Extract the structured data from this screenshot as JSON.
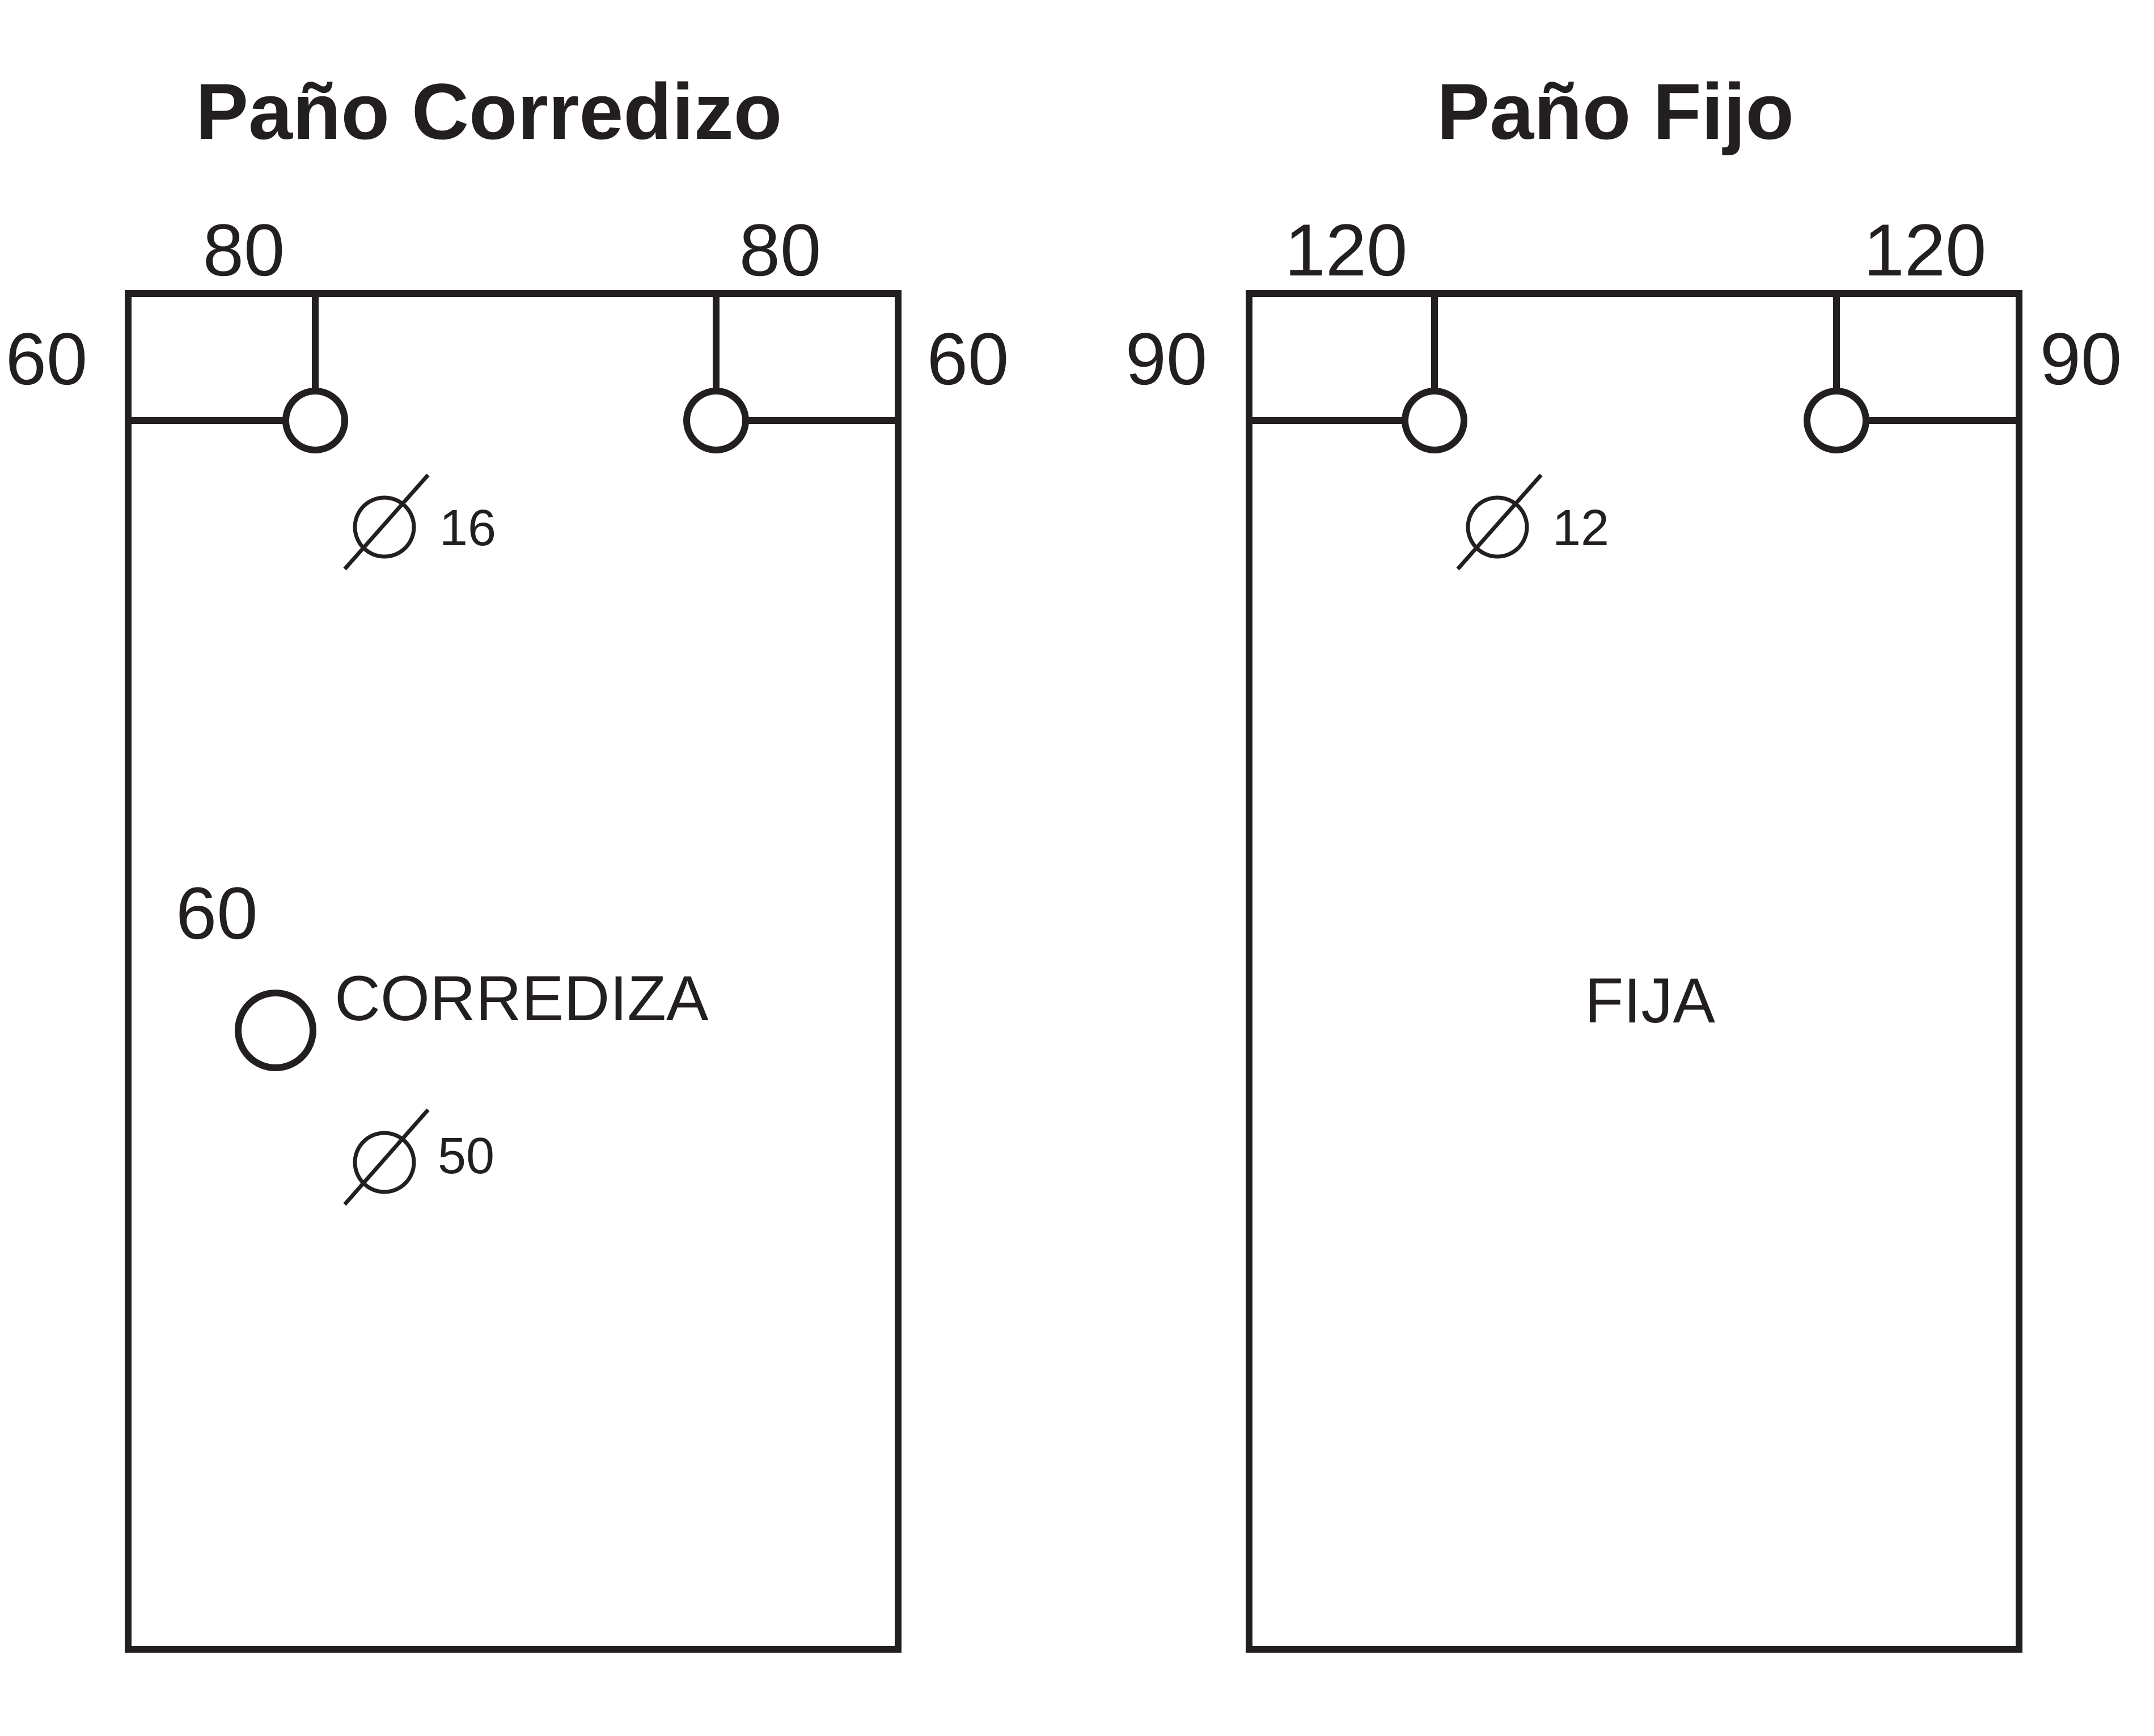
{
  "panels": {
    "sliding": {
      "title": "Paño Corredizo",
      "top_left_dim": "80",
      "top_right_dim": "80",
      "left_side_dim": "60",
      "right_side_dim": "60",
      "hole_diameter": "16",
      "handle_offset": "60",
      "label": "CORREDIZA",
      "handle_diameter": "50"
    },
    "fixed": {
      "title": "Paño Fijo",
      "top_left_dim": "120",
      "top_right_dim": "120",
      "left_side_dim": "90",
      "right_side_dim": "90",
      "hole_diameter": "12",
      "label": "FIJA"
    }
  }
}
